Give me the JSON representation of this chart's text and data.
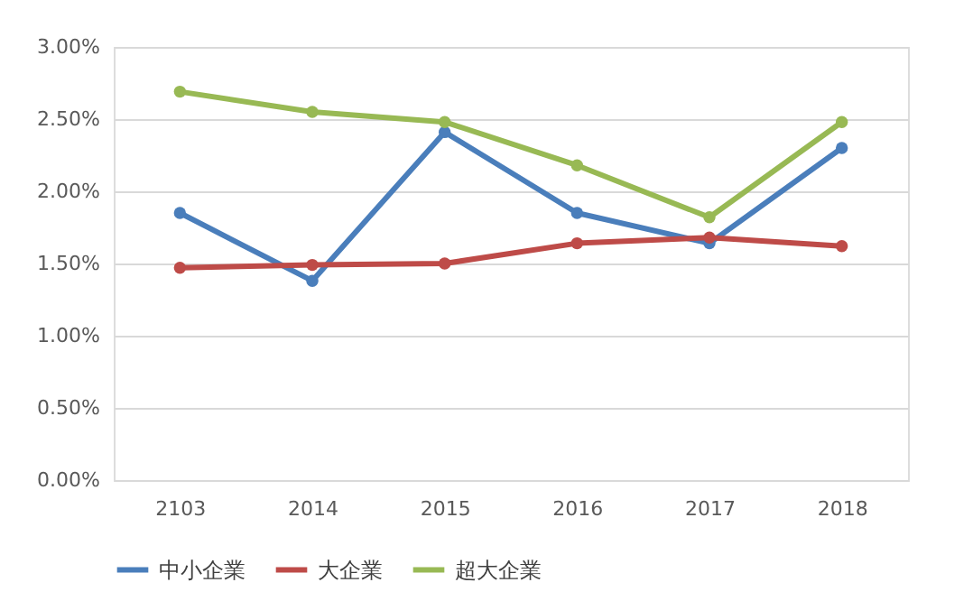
{
  "chart_data": {
    "type": "line",
    "categories": [
      "2103",
      "2014",
      "2015",
      "2016",
      "2017",
      "2018"
    ],
    "series": [
      {
        "name": "中小企業",
        "color": "#4a7ebb",
        "values": [
          0.0185,
          0.0138,
          0.0241,
          0.0185,
          0.0164,
          0.023
        ]
      },
      {
        "name": "大企業",
        "color": "#be4b48",
        "values": [
          0.0147,
          0.0149,
          0.015,
          0.0164,
          0.0168,
          0.0162
        ]
      },
      {
        "name": "超大企業",
        "color": "#98b954",
        "values": [
          0.0269,
          0.0255,
          0.0248,
          0.0218,
          0.0182,
          0.0248
        ]
      }
    ],
    "ylim": [
      0,
      0.03
    ],
    "yticks": [
      {
        "value": 0,
        "label": "0.00%"
      },
      {
        "value": 0.005,
        "label": "0.50%"
      },
      {
        "value": 0.01,
        "label": "1.00%"
      },
      {
        "value": 0.015,
        "label": "1.50%"
      },
      {
        "value": 0.02,
        "label": "2.00%"
      },
      {
        "value": 0.025,
        "label": "2.50%"
      },
      {
        "value": 0.03,
        "label": "3.00%"
      }
    ],
    "grid": "y",
    "legend": "bottom",
    "marker": "circle",
    "line_style": "solid"
  }
}
